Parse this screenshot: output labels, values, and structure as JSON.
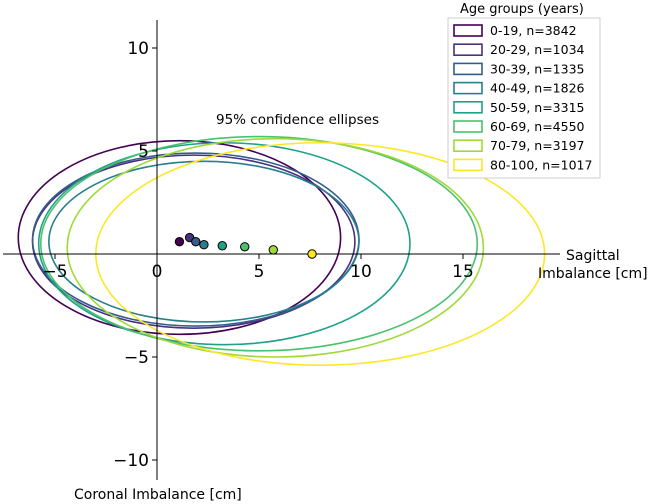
{
  "chart_data": {
    "type": "scatter",
    "title": "",
    "xlabel": "Sagittal\nImbalance [cm]",
    "ylabel": "Coronal Imbalance [cm]",
    "xlim": [
      -7.5,
      19.5
    ],
    "ylim": [
      -11,
      11.5
    ],
    "xticks": [
      -5,
      0,
      5,
      10,
      15
    ],
    "yticks": [
      -10,
      -5,
      5,
      10
    ],
    "annotation": "95% confidence ellipses",
    "legend_title": "Age groups (years)",
    "legend_position": "top-right",
    "series": [
      {
        "name": "0-19, n=3842",
        "color": "#440154",
        "mean": [
          1.1,
          0.6
        ],
        "ellipse": {
          "cx": 1.1,
          "cy": 0.8,
          "rx": 7.9,
          "ry": 4.7
        }
      },
      {
        "name": "20-29, n=1034",
        "color": "#46327e",
        "mean": [
          1.6,
          0.8
        ],
        "ellipse": {
          "cx": 1.8,
          "cy": 0.6,
          "rx": 7.9,
          "ry": 4.2
        }
      },
      {
        "name": "30-39, n=1335",
        "color": "#365c8d",
        "mean": [
          1.9,
          0.6
        ],
        "ellipse": {
          "cx": 1.9,
          "cy": 0.7,
          "rx": 8.0,
          "ry": 4.2
        }
      },
      {
        "name": "40-49, n=1826",
        "color": "#277f8e",
        "mean": [
          2.3,
          0.45
        ],
        "ellipse": {
          "cx": 2.3,
          "cy": 0.6,
          "rx": 7.6,
          "ry": 3.9
        }
      },
      {
        "name": "50-59, n=3315",
        "color": "#1fa187",
        "mean": [
          3.2,
          0.4
        ],
        "ellipse": {
          "cx": 3.3,
          "cy": 0.5,
          "rx": 9.1,
          "ry": 4.9
        }
      },
      {
        "name": "60-69, n=4550",
        "color": "#4ac16d",
        "mean": [
          4.3,
          0.35
        ],
        "ellipse": {
          "cx": 5.0,
          "cy": 0.5,
          "rx": 10.7,
          "ry": 5.2
        }
      },
      {
        "name": "70-79, n=3197",
        "color": "#a0da39",
        "mean": [
          5.7,
          0.2
        ],
        "ellipse": {
          "cx": 5.8,
          "cy": 0.3,
          "rx": 10.2,
          "ry": 5.3
        }
      },
      {
        "name": "80-100, n=1017",
        "color": "#fde725",
        "mean": [
          7.6,
          0.0
        ],
        "ellipse": {
          "cx": 8.0,
          "cy": 0.0,
          "rx": 11.0,
          "ry": 5.4
        }
      }
    ]
  }
}
